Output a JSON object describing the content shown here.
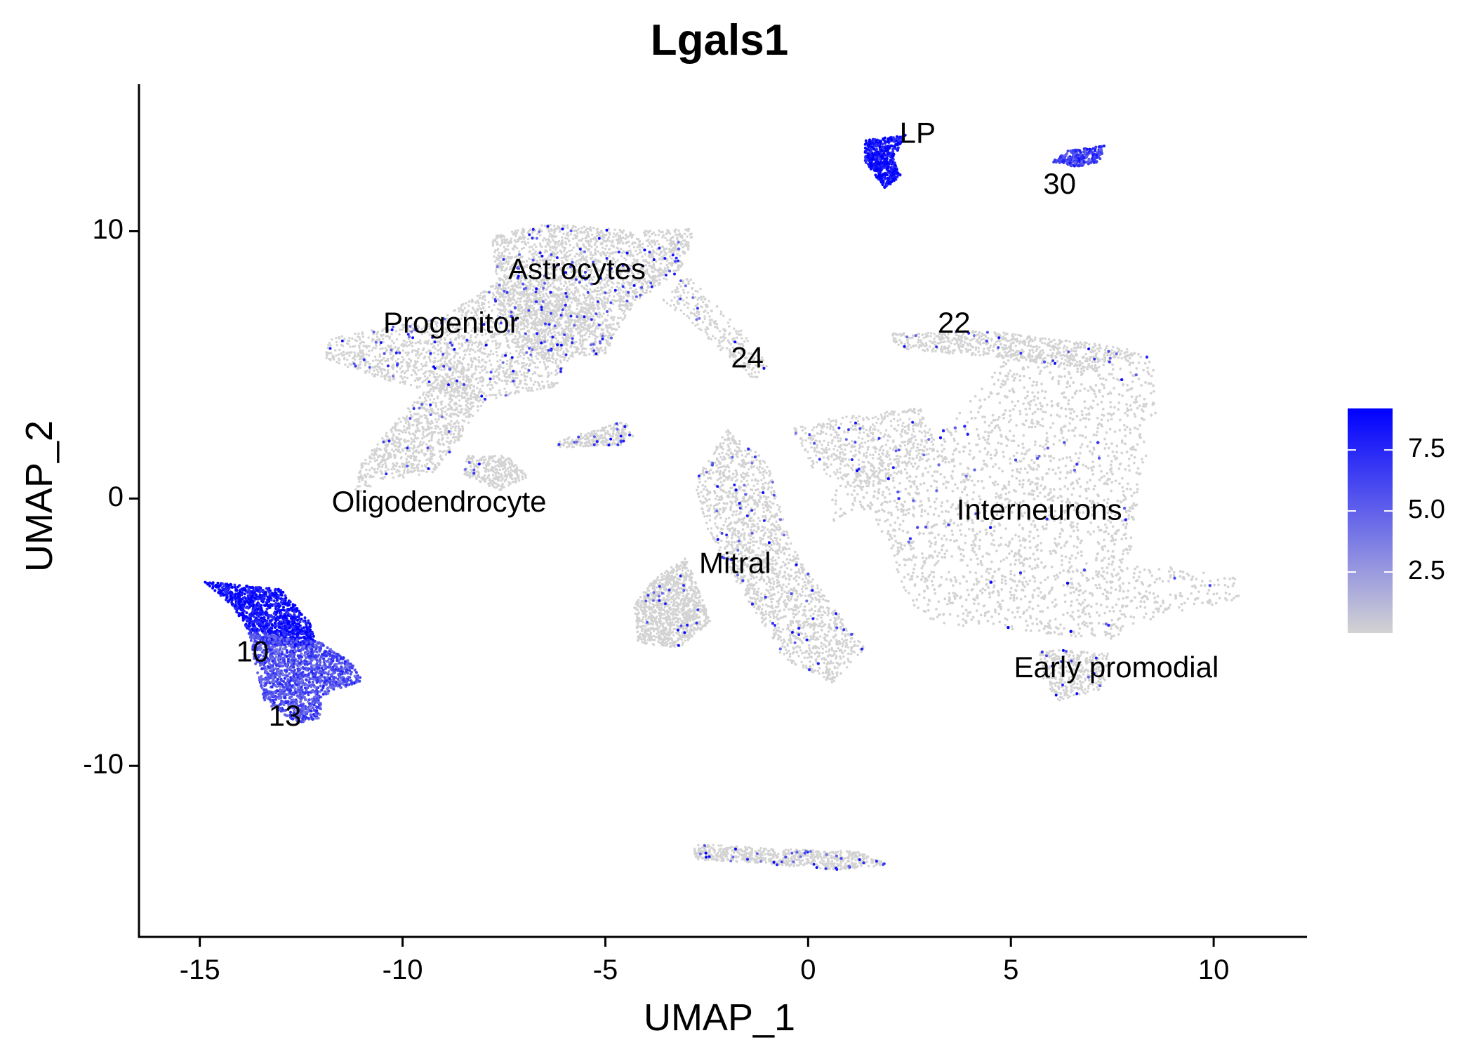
{
  "chart_data": {
    "type": "scatter",
    "title": "Lgals1",
    "xlabel": "UMAP_1",
    "ylabel": "UMAP_2",
    "xlim": [
      -16.5,
      12.3
    ],
    "ylim": [
      -16.4,
      15.5
    ],
    "xticks": [
      -15,
      -10,
      -5,
      0,
      5,
      10
    ],
    "xtick_labels": [
      "-15",
      "-10",
      "-5",
      "0",
      "5",
      "10"
    ],
    "yticks": [
      -10,
      0,
      10
    ],
    "ytick_labels": [
      "-10",
      "0",
      "10"
    ],
    "grid": false,
    "color_scale": {
      "low": "#d3d3d3",
      "high": "#0000ff",
      "min": 0,
      "max": 9.2,
      "ticks": [
        2.5,
        5.0,
        7.5
      ],
      "tick_labels": [
        "2.5",
        "5.0",
        "7.5"
      ],
      "placement": "right"
    },
    "cluster_labels": [
      {
        "text": "LP",
        "x": 2.7,
        "y": 13.6
      },
      {
        "text": "30",
        "x": 6.2,
        "y": 11.7
      },
      {
        "text": "Astrocytes",
        "x": -5.7,
        "y": 8.5
      },
      {
        "text": "Progenitor",
        "x": -8.8,
        "y": 6.5
      },
      {
        "text": "22",
        "x": 3.6,
        "y": 6.5
      },
      {
        "text": "24",
        "x": -1.5,
        "y": 5.2
      },
      {
        "text": "Oligodendrocyte",
        "x": -9.1,
        "y": -0.2
      },
      {
        "text": "Interneurons",
        "x": 5.7,
        "y": -0.5
      },
      {
        "text": "Mitral",
        "x": -1.8,
        "y": -2.5
      },
      {
        "text": "10",
        "x": -13.7,
        "y": -5.8
      },
      {
        "text": "13",
        "x": -12.9,
        "y": -8.2
      },
      {
        "text": "Early promodial",
        "x": 7.6,
        "y": -6.4
      }
    ],
    "clusters": [
      {
        "shape": [
          [
            -4.2,
            10.0
          ],
          [
            -2.8,
            10.1
          ],
          [
            -3.1,
            8.6
          ],
          [
            -4.3,
            7.3
          ],
          [
            -5.0,
            5.4
          ],
          [
            -6.5,
            5.2
          ],
          [
            -7.6,
            6.8
          ],
          [
            -7.8,
            9.8
          ],
          [
            -6.5,
            10.3
          ]
        ],
        "n": 2400,
        "expr": 0.04
      },
      {
        "shape": [
          [
            -7.6,
            8.2
          ],
          [
            -5.2,
            7.3
          ],
          [
            -6.2,
            4.2
          ],
          [
            -8.2,
            3.6
          ],
          [
            -10.8,
            4.6
          ],
          [
            -12.0,
            5.3
          ],
          [
            -11.8,
            6.0
          ],
          [
            -9.0,
            6.8
          ]
        ],
        "n": 1800,
        "expr": 0.06
      },
      {
        "shape": [
          [
            -8.6,
            5.2
          ],
          [
            -8.0,
            3.6
          ],
          [
            -8.6,
            2.2
          ],
          [
            -9.2,
            1.0
          ],
          [
            -10.6,
            0.6
          ],
          [
            -11.2,
            0.1
          ],
          [
            -11.0,
            1.4
          ],
          [
            -10.2,
            2.8
          ],
          [
            -9.4,
            4.2
          ]
        ],
        "n": 900,
        "expr": 0.02
      },
      {
        "shape": [
          [
            -8.4,
            1.6
          ],
          [
            -7.4,
            1.6
          ],
          [
            -6.9,
            0.8
          ],
          [
            -7.6,
            0.3
          ],
          [
            -8.5,
            0.9
          ]
        ],
        "n": 300,
        "expr": 0.02
      },
      {
        "shape": [
          [
            -6.1,
            2.2
          ],
          [
            -4.5,
            2.9
          ],
          [
            -4.3,
            2.3
          ],
          [
            -4.6,
            2.0
          ],
          [
            -6.2,
            1.9
          ]
        ],
        "n": 260,
        "expr": 0.08
      },
      {
        "shape": [
          [
            -3.0,
            8.4
          ],
          [
            -1.6,
            6.2
          ],
          [
            -1.0,
            5.0
          ],
          [
            -1.3,
            4.4
          ],
          [
            -2.2,
            5.6
          ],
          [
            -3.6,
            7.4
          ]
        ],
        "n": 260,
        "expr": 0.02
      },
      {
        "shape": [
          [
            2.0,
            6.2
          ],
          [
            4.4,
            6.3
          ],
          [
            7.0,
            5.8
          ],
          [
            8.2,
            5.5
          ],
          [
            7.0,
            4.8
          ],
          [
            4.6,
            5.3
          ],
          [
            2.2,
            5.6
          ]
        ],
        "n": 700,
        "expr": 0.02
      },
      {
        "shape": [
          [
            5.0,
            5.4
          ],
          [
            8.5,
            5.4
          ],
          [
            8.6,
            3.2
          ],
          [
            8.2,
            0.8
          ],
          [
            7.9,
            -2.5
          ],
          [
            9.2,
            -2.6
          ],
          [
            10.7,
            -3.0
          ],
          [
            10.6,
            -3.8
          ],
          [
            8.6,
            -4.4
          ],
          [
            7.4,
            -5.3
          ],
          [
            6.2,
            -5.1
          ],
          [
            5.0,
            -4.9
          ],
          [
            3.2,
            -4.7
          ],
          [
            2.4,
            -3.8
          ],
          [
            2.0,
            -1.6
          ],
          [
            1.4,
            -0.4
          ],
          [
            0.6,
            -1.0
          ],
          [
            0.6,
            0.6
          ],
          [
            1.6,
            1.4
          ],
          [
            2.6,
            1.6
          ],
          [
            3.6,
            3.0
          ]
        ],
        "n": 11000,
        "expr": 0.02
      },
      {
        "shape": [
          [
            0.6,
            3.0
          ],
          [
            2.8,
            3.4
          ],
          [
            3.2,
            1.8
          ],
          [
            1.6,
            0.4
          ],
          [
            0.2,
            0.9
          ],
          [
            -0.4,
            2.6
          ]
        ],
        "n": 600,
        "expr": 0.02
      },
      {
        "shape": [
          [
            -2.0,
            2.6
          ],
          [
            -1.0,
            1.4
          ],
          [
            -0.4,
            -1.8
          ],
          [
            0.4,
            -3.6
          ],
          [
            1.4,
            -5.6
          ],
          [
            0.6,
            -6.9
          ],
          [
            -0.6,
            -6.0
          ],
          [
            -1.4,
            -4.0
          ],
          [
            -2.4,
            -1.6
          ],
          [
            -2.8,
            0.6
          ]
        ],
        "n": 2600,
        "expr": 0.03
      },
      {
        "shape": [
          [
            -3.0,
            -2.2
          ],
          [
            -2.4,
            -4.6
          ],
          [
            -3.2,
            -5.6
          ],
          [
            -4.2,
            -5.4
          ],
          [
            -4.3,
            -4.0
          ],
          [
            -3.8,
            -3.0
          ]
        ],
        "n": 1100,
        "expr": 0.02
      },
      {
        "shape": [
          [
            5.7,
            -5.6
          ],
          [
            7.4,
            -5.8
          ],
          [
            7.3,
            -7.1
          ],
          [
            6.2,
            -7.6
          ],
          [
            5.8,
            -6.8
          ]
        ],
        "n": 360,
        "expr": 0.02
      },
      {
        "shape": [
          [
            -2.8,
            -12.9
          ],
          [
            -1.0,
            -13.1
          ],
          [
            1.2,
            -13.2
          ],
          [
            2.0,
            -13.7
          ],
          [
            0.8,
            -13.9
          ],
          [
            -1.6,
            -13.6
          ],
          [
            -2.8,
            -13.5
          ]
        ],
        "n": 700,
        "expr": 0.05
      },
      {
        "shape": [
          [
            -14.9,
            -3.1
          ],
          [
            -13.0,
            -3.4
          ],
          [
            -12.3,
            -4.6
          ],
          [
            -12.1,
            -5.6
          ],
          [
            -13.6,
            -5.4
          ],
          [
            -14.2,
            -4.0
          ]
        ],
        "n": 1100,
        "expr": 0.95
      },
      {
        "shape": [
          [
            -13.8,
            -5.0
          ],
          [
            -12.0,
            -5.4
          ],
          [
            -11.2,
            -6.2
          ],
          [
            -11.0,
            -6.8
          ],
          [
            -12.0,
            -7.4
          ],
          [
            -12.0,
            -8.2
          ],
          [
            -12.6,
            -8.4
          ],
          [
            -13.4,
            -7.6
          ],
          [
            -13.6,
            -6.4
          ]
        ],
        "n": 1500,
        "expr": 0.62
      },
      {
        "shape": [
          [
            2.4,
            13.6
          ],
          [
            1.4,
            13.4
          ],
          [
            1.4,
            12.6
          ],
          [
            1.9,
            11.6
          ],
          [
            2.3,
            12.1
          ],
          [
            2.1,
            12.7
          ]
        ],
        "n": 520,
        "expr": 0.96
      },
      {
        "shape": [
          [
            6.4,
            13.0
          ],
          [
            7.3,
            13.2
          ],
          [
            7.2,
            12.6
          ],
          [
            6.6,
            12.4
          ],
          [
            6.0,
            12.6
          ]
        ],
        "n": 260,
        "expr": 0.7
      }
    ]
  }
}
